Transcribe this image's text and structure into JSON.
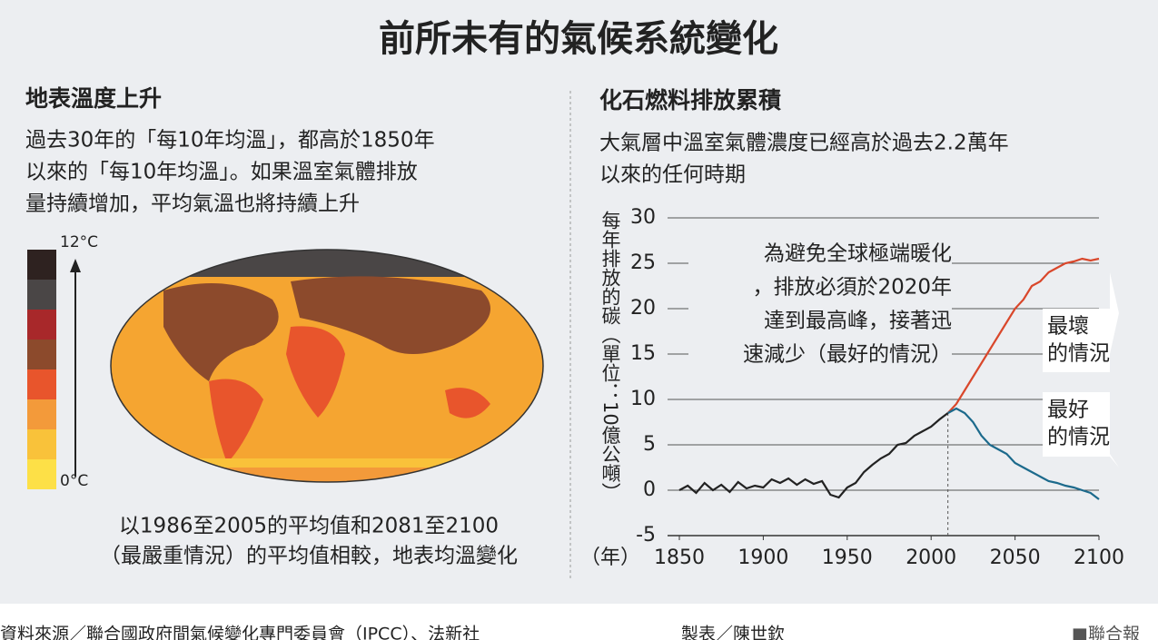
{
  "header": {
    "title": "前所未有的氣候系統變化"
  },
  "left_panel": {
    "heading": "地表溫度上升",
    "body_lines": [
      "過去30年的「每10年均溫」，都高於1850年",
      "以來的「每10年均溫」。如果溫室氣體排放",
      "量持續增加，平均氣溫也將持續上升"
    ],
    "scale_top": "12°C",
    "scale_bottom": "0°C",
    "scale_colors": [
      "#2e2220",
      "#4a4646",
      "#a8282a",
      "#8c4a2c",
      "#e8552c",
      "#f39a3a",
      "#f9c23a",
      "#fde047"
    ],
    "caption_lines": [
      "以1986至2005的平均值和2081至2100",
      "（最嚴重情況）的平均值相較，地表均溫變化"
    ]
  },
  "chart_data": {
    "type": "line",
    "title": "化石燃料排放累積",
    "subtitle_lines": [
      "大氣層中溫室氣體濃度已經高於過去2.2萬年",
      "以來的任何時期"
    ],
    "y_label": "每年排放的碳（單位：10億公噸）",
    "x_label": "（年）",
    "xlim": [
      1850,
      2100
    ],
    "xticks": [
      1850,
      1900,
      1950,
      2000,
      2050,
      2100
    ],
    "ylim": [
      -5,
      30
    ],
    "yticks": [
      -5,
      0,
      5,
      10,
      15,
      20,
      25,
      30
    ],
    "grid": true,
    "series": [
      {
        "color": "#222222",
        "x": [
          1850,
          1855,
          1860,
          1865,
          1870,
          1875,
          1880,
          1885,
          1890,
          1895,
          1900,
          1905,
          1910,
          1915,
          1920,
          1925,
          1930,
          1935,
          1940,
          1945,
          1950,
          1955,
          1960,
          1965,
          1970,
          1975,
          1980,
          1985,
          1990,
          1995,
          2000,
          2005,
          2010
        ],
        "values": [
          0,
          0.5,
          -0.3,
          0.8,
          0,
          0.6,
          -0.2,
          0.9,
          0.2,
          0.5,
          0.3,
          1.2,
          0.8,
          1.3,
          0.6,
          1.2,
          0.7,
          1.0,
          -0.5,
          -0.8,
          0.3,
          0.8,
          2.0,
          2.8,
          3.5,
          4.0,
          5.0,
          5.2,
          6.0,
          6.5,
          7.0,
          7.8,
          8.5
        ]
      },
      {
        "color": "#d9472b",
        "x": [
          2010,
          2015,
          2020,
          2025,
          2030,
          2035,
          2040,
          2045,
          2050,
          2055,
          2060,
          2065,
          2070,
          2075,
          2080,
          2085,
          2090,
          2095,
          2100
        ],
        "values": [
          8.5,
          9.5,
          11,
          12.5,
          14,
          15.5,
          17,
          18.5,
          20,
          21,
          22.5,
          23,
          24,
          24.5,
          25,
          25.2,
          25.5,
          25.3,
          25.5
        ]
      },
      {
        "color": "#1c6a8c",
        "x": [
          2010,
          2015,
          2020,
          2025,
          2030,
          2035,
          2040,
          2045,
          2050,
          2055,
          2060,
          2065,
          2070,
          2075,
          2080,
          2085,
          2090,
          2095,
          2100
        ],
        "values": [
          8.5,
          9,
          8.5,
          7.5,
          6,
          5,
          4.5,
          4,
          3,
          2.5,
          2,
          1.5,
          1,
          0.8,
          0.5,
          0.3,
          0,
          -0.3,
          -1
        ]
      }
    ],
    "annotations": {
      "note_lines": [
        "為避免全球極端暖化",
        "，排放必須於2020年",
        "達到最高峰，接著迅",
        "速減少（最好的情況）"
      ],
      "worst_lines": [
        "最壞",
        "的情況"
      ],
      "best_lines": [
        "最好",
        "的情況"
      ]
    }
  },
  "footer": {
    "source": "資料來源／聯合國政府間氣候變化專門委員會（IPCC）、法新社",
    "maker": "製表／陳世欽",
    "brand": "■聯合報"
  }
}
